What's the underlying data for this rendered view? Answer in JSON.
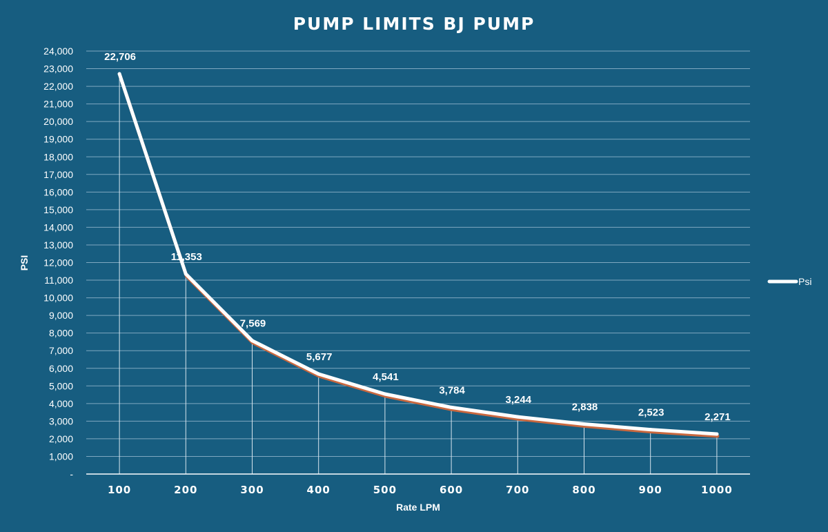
{
  "chart_data": {
    "type": "line",
    "title": "PUMP LIMITS BJ PUMP",
    "xlabel": "Rate LPM",
    "ylabel": "PSI",
    "categories": [
      "100",
      "200",
      "300",
      "400",
      "500",
      "600",
      "700",
      "800",
      "900",
      "1000"
    ],
    "series": [
      {
        "name": "Psi",
        "values": [
          22706,
          11353,
          7569,
          5677,
          4541,
          3784,
          3244,
          2838,
          2523,
          2271
        ],
        "labels": [
          "22,706",
          "11,353",
          "7,569",
          "5,677",
          "4,541",
          "3,784",
          "3,244",
          "2,838",
          "2,523",
          "2,271"
        ]
      }
    ],
    "ylim": [
      0,
      24000
    ],
    "yticks": [
      "-",
      "1,000",
      "2,000",
      "3,000",
      "4,000",
      "5,000",
      "6,000",
      "7,000",
      "8,000",
      "9,000",
      "10,000",
      "11,000",
      "12,000",
      "13,000",
      "14,000",
      "15,000",
      "16,000",
      "17,000",
      "18,000",
      "19,000",
      "20,000",
      "21,000",
      "22,000",
      "23,000",
      "24,000"
    ],
    "grid": true,
    "drop_lines": true,
    "legend": "right",
    "colors": {
      "background": "#175d80",
      "line": "#ffffff",
      "line_shadow": "#c9683f",
      "grid": "#7fa8c0",
      "text": "#ffffff"
    }
  }
}
